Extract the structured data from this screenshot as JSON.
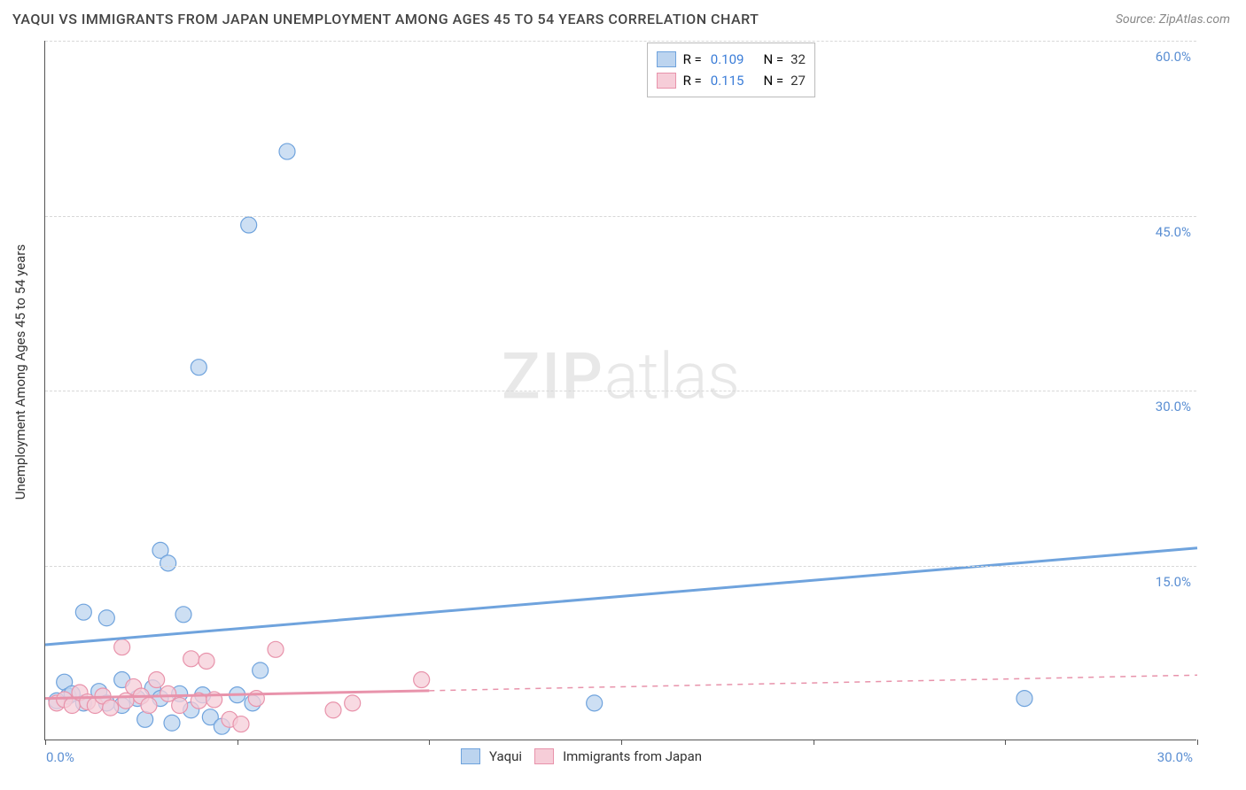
{
  "title": "YAQUI VS IMMIGRANTS FROM JAPAN UNEMPLOYMENT AMONG AGES 45 TO 54 YEARS CORRELATION CHART",
  "source": "Source: ZipAtlas.com",
  "watermark_a": "ZIP",
  "watermark_b": "atlas",
  "y_axis_label": "Unemployment Among Ages 45 to 54 years",
  "chart": {
    "type": "scatter",
    "background_color": "#ffffff",
    "grid_color": "#d8d8d8",
    "axis_color": "#555555",
    "tick_label_color": "#5b8fd3",
    "xlim": [
      0,
      30
    ],
    "ylim": [
      0,
      60
    ],
    "x_ticks": [
      0,
      5,
      10,
      15,
      20,
      25,
      30
    ],
    "x_tick_labels": {
      "0": "0.0%",
      "30": "30.0%"
    },
    "y_grid": [
      15,
      30,
      45,
      60
    ],
    "y_tick_labels": {
      "60": "60.0%",
      "45": "45.0%",
      "30": "30.0%",
      "15": "15.0%"
    },
    "marker_radius": 9,
    "marker_stroke_width": 1.2,
    "trend_line_width": 3,
    "series": [
      {
        "name": "Yaqui",
        "color_fill": "#bcd4ef",
        "color_stroke": "#6fa3dd",
        "r": "0.109",
        "n": "32",
        "trend": {
          "x1": 0,
          "y1": 8.2,
          "x2": 30,
          "y2": 16.5,
          "dash": null,
          "solid_until": 30
        },
        "points": [
          {
            "x": 6.3,
            "y": 50.5
          },
          {
            "x": 5.3,
            "y": 44.2
          },
          {
            "x": 4.0,
            "y": 32.0
          },
          {
            "x": 3.0,
            "y": 16.3
          },
          {
            "x": 3.2,
            "y": 15.2
          },
          {
            "x": 1.0,
            "y": 11.0
          },
          {
            "x": 1.6,
            "y": 10.5
          },
          {
            "x": 3.6,
            "y": 10.8
          },
          {
            "x": 0.5,
            "y": 5.0
          },
          {
            "x": 0.6,
            "y": 3.8
          },
          {
            "x": 0.7,
            "y": 4.0
          },
          {
            "x": 1.0,
            "y": 3.2
          },
          {
            "x": 1.4,
            "y": 4.2
          },
          {
            "x": 1.6,
            "y": 3.2
          },
          {
            "x": 2.0,
            "y": 3.0
          },
          {
            "x": 2.0,
            "y": 5.2
          },
          {
            "x": 2.4,
            "y": 3.6
          },
          {
            "x": 2.6,
            "y": 1.8
          },
          {
            "x": 2.8,
            "y": 4.5
          },
          {
            "x": 3.0,
            "y": 3.6
          },
          {
            "x": 3.3,
            "y": 1.5
          },
          {
            "x": 3.5,
            "y": 4.0
          },
          {
            "x": 3.8,
            "y": 2.6
          },
          {
            "x": 4.1,
            "y": 3.9
          },
          {
            "x": 4.3,
            "y": 2.0
          },
          {
            "x": 4.6,
            "y": 1.2
          },
          {
            "x": 5.0,
            "y": 3.9
          },
          {
            "x": 5.4,
            "y": 3.2
          },
          {
            "x": 5.6,
            "y": 6.0
          },
          {
            "x": 14.3,
            "y": 3.2
          },
          {
            "x": 25.5,
            "y": 3.6
          },
          {
            "x": 0.3,
            "y": 3.4
          }
        ]
      },
      {
        "name": "Immigrants from Japan",
        "color_fill": "#f6cdd8",
        "color_stroke": "#e893ab",
        "r": "0.115",
        "n": "27",
        "trend": {
          "x1": 0,
          "y1": 3.6,
          "x2": 30,
          "y2": 5.6,
          "dash": "6 6",
          "solid_until": 10
        },
        "points": [
          {
            "x": 0.3,
            "y": 3.2
          },
          {
            "x": 0.5,
            "y": 3.5
          },
          {
            "x": 0.7,
            "y": 3.0
          },
          {
            "x": 0.9,
            "y": 4.1
          },
          {
            "x": 1.1,
            "y": 3.3
          },
          {
            "x": 1.3,
            "y": 3.0
          },
          {
            "x": 1.5,
            "y": 3.8
          },
          {
            "x": 1.7,
            "y": 2.8
          },
          {
            "x": 2.0,
            "y": 8.0
          },
          {
            "x": 2.1,
            "y": 3.4
          },
          {
            "x": 2.3,
            "y": 4.6
          },
          {
            "x": 2.5,
            "y": 3.8
          },
          {
            "x": 2.7,
            "y": 3.0
          },
          {
            "x": 2.9,
            "y": 5.2
          },
          {
            "x": 3.2,
            "y": 4.0
          },
          {
            "x": 3.5,
            "y": 3.0
          },
          {
            "x": 3.8,
            "y": 7.0
          },
          {
            "x": 4.0,
            "y": 3.4
          },
          {
            "x": 4.2,
            "y": 6.8
          },
          {
            "x": 4.4,
            "y": 3.5
          },
          {
            "x": 4.8,
            "y": 1.8
          },
          {
            "x": 5.1,
            "y": 1.4
          },
          {
            "x": 5.5,
            "y": 3.6
          },
          {
            "x": 6.0,
            "y": 7.8
          },
          {
            "x": 7.5,
            "y": 2.6
          },
          {
            "x": 8.0,
            "y": 3.2
          },
          {
            "x": 9.8,
            "y": 5.2
          }
        ]
      }
    ]
  },
  "legend_r_prefix": "R =",
  "legend_n_prefix": "N ="
}
